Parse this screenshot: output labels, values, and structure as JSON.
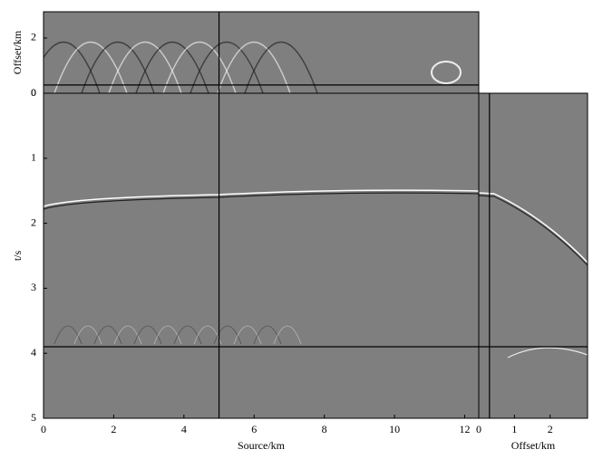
{
  "chart_data": [
    {
      "type": "image",
      "ylabel": "Offset/km",
      "xlim": [
        0,
        12.4
      ],
      "ylim": [
        0,
        2.95
      ],
      "yticks": [
        0,
        2
      ],
      "vlines": [
        5
      ],
      "hlines": [
        0.3
      ]
    },
    {
      "type": "image",
      "xlabel": "Source/km",
      "ylabel": "t/s",
      "xlim": [
        0,
        12.4
      ],
      "ylim": [
        5,
        0
      ],
      "xticks": [
        0,
        2,
        4,
        6,
        8,
        10,
        12
      ],
      "yticks": [
        0,
        1,
        2,
        3,
        4,
        5
      ],
      "vlines": [
        5
      ],
      "hlines": [
        3.9
      ]
    },
    {
      "type": "image",
      "xlabel": "Offset/km",
      "xlim": [
        0,
        3.05
      ],
      "ylim": [
        5,
        0
      ],
      "xticks": [
        0,
        1,
        2
      ],
      "vlines": [
        0.3
      ],
      "hlines": [
        3.9
      ]
    }
  ]
}
